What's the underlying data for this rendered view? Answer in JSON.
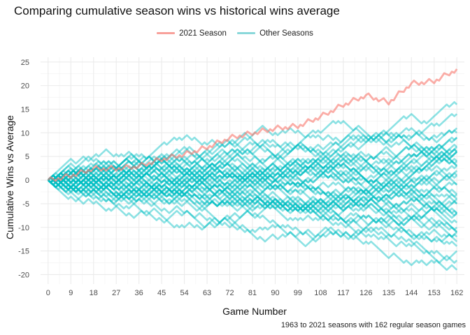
{
  "chart_data": {
    "type": "line",
    "title": "Comparing cumulative season wins vs historical wins average",
    "xlabel": "Game Number",
    "ylabel": "Cumulative Wins vs Average",
    "caption": "1963 to 2021 seasons with 162 regular season games",
    "xlim": [
      -3,
      165
    ],
    "ylim": [
      -22,
      26
    ],
    "x_ticks": [
      0,
      9,
      18,
      27,
      36,
      45,
      54,
      63,
      72,
      81,
      90,
      99,
      108,
      117,
      126,
      135,
      144,
      153,
      162
    ],
    "y_ticks": [
      25,
      20,
      15,
      10,
      5,
      0,
      -5,
      -10,
      -15,
      -20
    ],
    "grid": true,
    "legend_position": "top",
    "legend": [
      {
        "name": "2021 Season",
        "color": "#f8766d"
      },
      {
        "name": "Other Seasons",
        "color": "#00bfc4"
      }
    ],
    "series": [
      {
        "name": "2021 Season",
        "color": "#f8766d",
        "x": [
          0,
          9,
          18,
          27,
          36,
          45,
          54,
          63,
          72,
          81,
          90,
          99,
          108,
          117,
          126,
          135,
          144,
          153,
          162
        ],
        "y": [
          0,
          1,
          2.5,
          2.5,
          3,
          4.5,
          5.5,
          7,
          9,
          10,
          11,
          11.5,
          13.5,
          16,
          18,
          16.5,
          20.5,
          21,
          23.5
        ]
      },
      {
        "name": "Other Seasons",
        "color": "#00bfc4",
        "count": 44,
        "x": [
          0,
          9,
          18,
          27,
          36,
          45,
          54,
          63,
          72,
          81,
          90,
          99,
          108,
          117,
          126,
          135,
          144,
          153,
          162
        ],
        "end_values": [
          20,
          13.5,
          11.5,
          10,
          9,
          8.5,
          8,
          7.5,
          7,
          7,
          6.5,
          6,
          5.5,
          5,
          4.5,
          4,
          3,
          2.5,
          2,
          1,
          0,
          -0.5,
          -1,
          -2,
          -3,
          -4,
          -5,
          -5.5,
          -6.5,
          -7.5,
          -8,
          -9,
          -10,
          -10.5,
          -11.5,
          -12,
          -13,
          -14,
          -15,
          -16.5,
          -17,
          -19,
          -20.5,
          -21
        ]
      }
    ]
  }
}
